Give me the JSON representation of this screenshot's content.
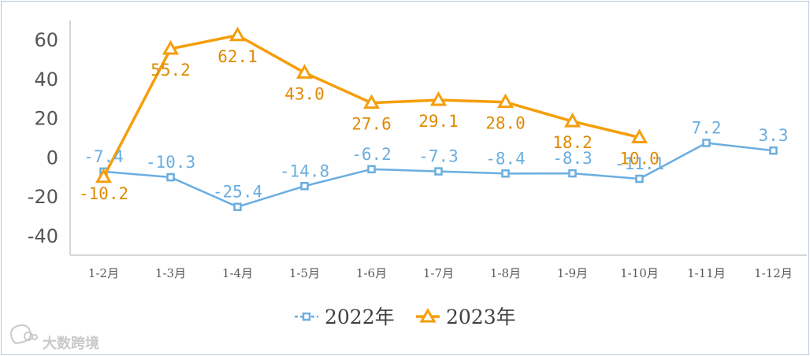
{
  "chart_data": {
    "type": "line",
    "categories": [
      "1-2月",
      "1-3月",
      "1-4月",
      "1-5月",
      "1-6月",
      "1-7月",
      "1-8月",
      "1-9月",
      "1-10月",
      "1-11月",
      "1-12月"
    ],
    "ylim": [
      -40,
      60
    ],
    "yticks": [
      -40,
      -20,
      0,
      20,
      40,
      60
    ],
    "grid": false,
    "legend_position": "bottom",
    "series": [
      {
        "name": "2022年",
        "color": "#6aaee0",
        "marker": "square",
        "values": [
          -7.4,
          -10.3,
          -25.4,
          -14.8,
          -6.2,
          -7.3,
          -8.4,
          -8.3,
          -11.1,
          7.2,
          3.3
        ]
      },
      {
        "name": "2023年",
        "color": "#f59e0b",
        "marker": "triangle",
        "values": [
          -10.2,
          55.2,
          62.1,
          43.0,
          27.6,
          29.1,
          28.0,
          18.2,
          10.0,
          null,
          null
        ]
      }
    ]
  },
  "watermark": {
    "text": "大数跨境",
    "icon": "chat-bubble-logo-icon"
  }
}
